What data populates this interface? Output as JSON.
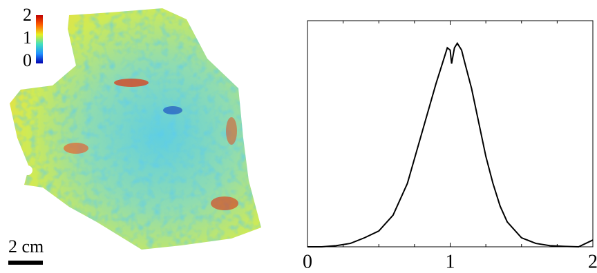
{
  "chart_data": [
    {
      "type": "map",
      "colorbar_lim": [
        0,
        2
      ],
      "colorbar_ticks": [
        0,
        1,
        2
      ],
      "scale_bar": "2 cm"
    },
    {
      "type": "line",
      "xlim": [
        0,
        2
      ],
      "ylim": [
        0,
        1
      ],
      "xticks": [
        0,
        1,
        2
      ],
      "xminorticks": [
        0.25,
        0.5,
        0.75,
        1.25,
        1.5,
        1.75
      ],
      "color": "#000000",
      "x": [
        0,
        0.1,
        0.2,
        0.3,
        0.4,
        0.5,
        0.6,
        0.7,
        0.8,
        0.9,
        0.95,
        0.98,
        1.0,
        1.01,
        1.03,
        1.05,
        1.08,
        1.1,
        1.15,
        1.2,
        1.25,
        1.3,
        1.35,
        1.4,
        1.5,
        1.6,
        1.7,
        1.8,
        1.9,
        2.0
      ],
      "values": [
        0,
        0,
        0.005,
        0.015,
        0.04,
        0.07,
        0.14,
        0.28,
        0.5,
        0.72,
        0.82,
        0.88,
        0.87,
        0.81,
        0.88,
        0.9,
        0.87,
        0.82,
        0.7,
        0.55,
        0.4,
        0.28,
        0.18,
        0.11,
        0.04,
        0.015,
        0.005,
        0.002,
        0,
        0.03
      ]
    }
  ]
}
